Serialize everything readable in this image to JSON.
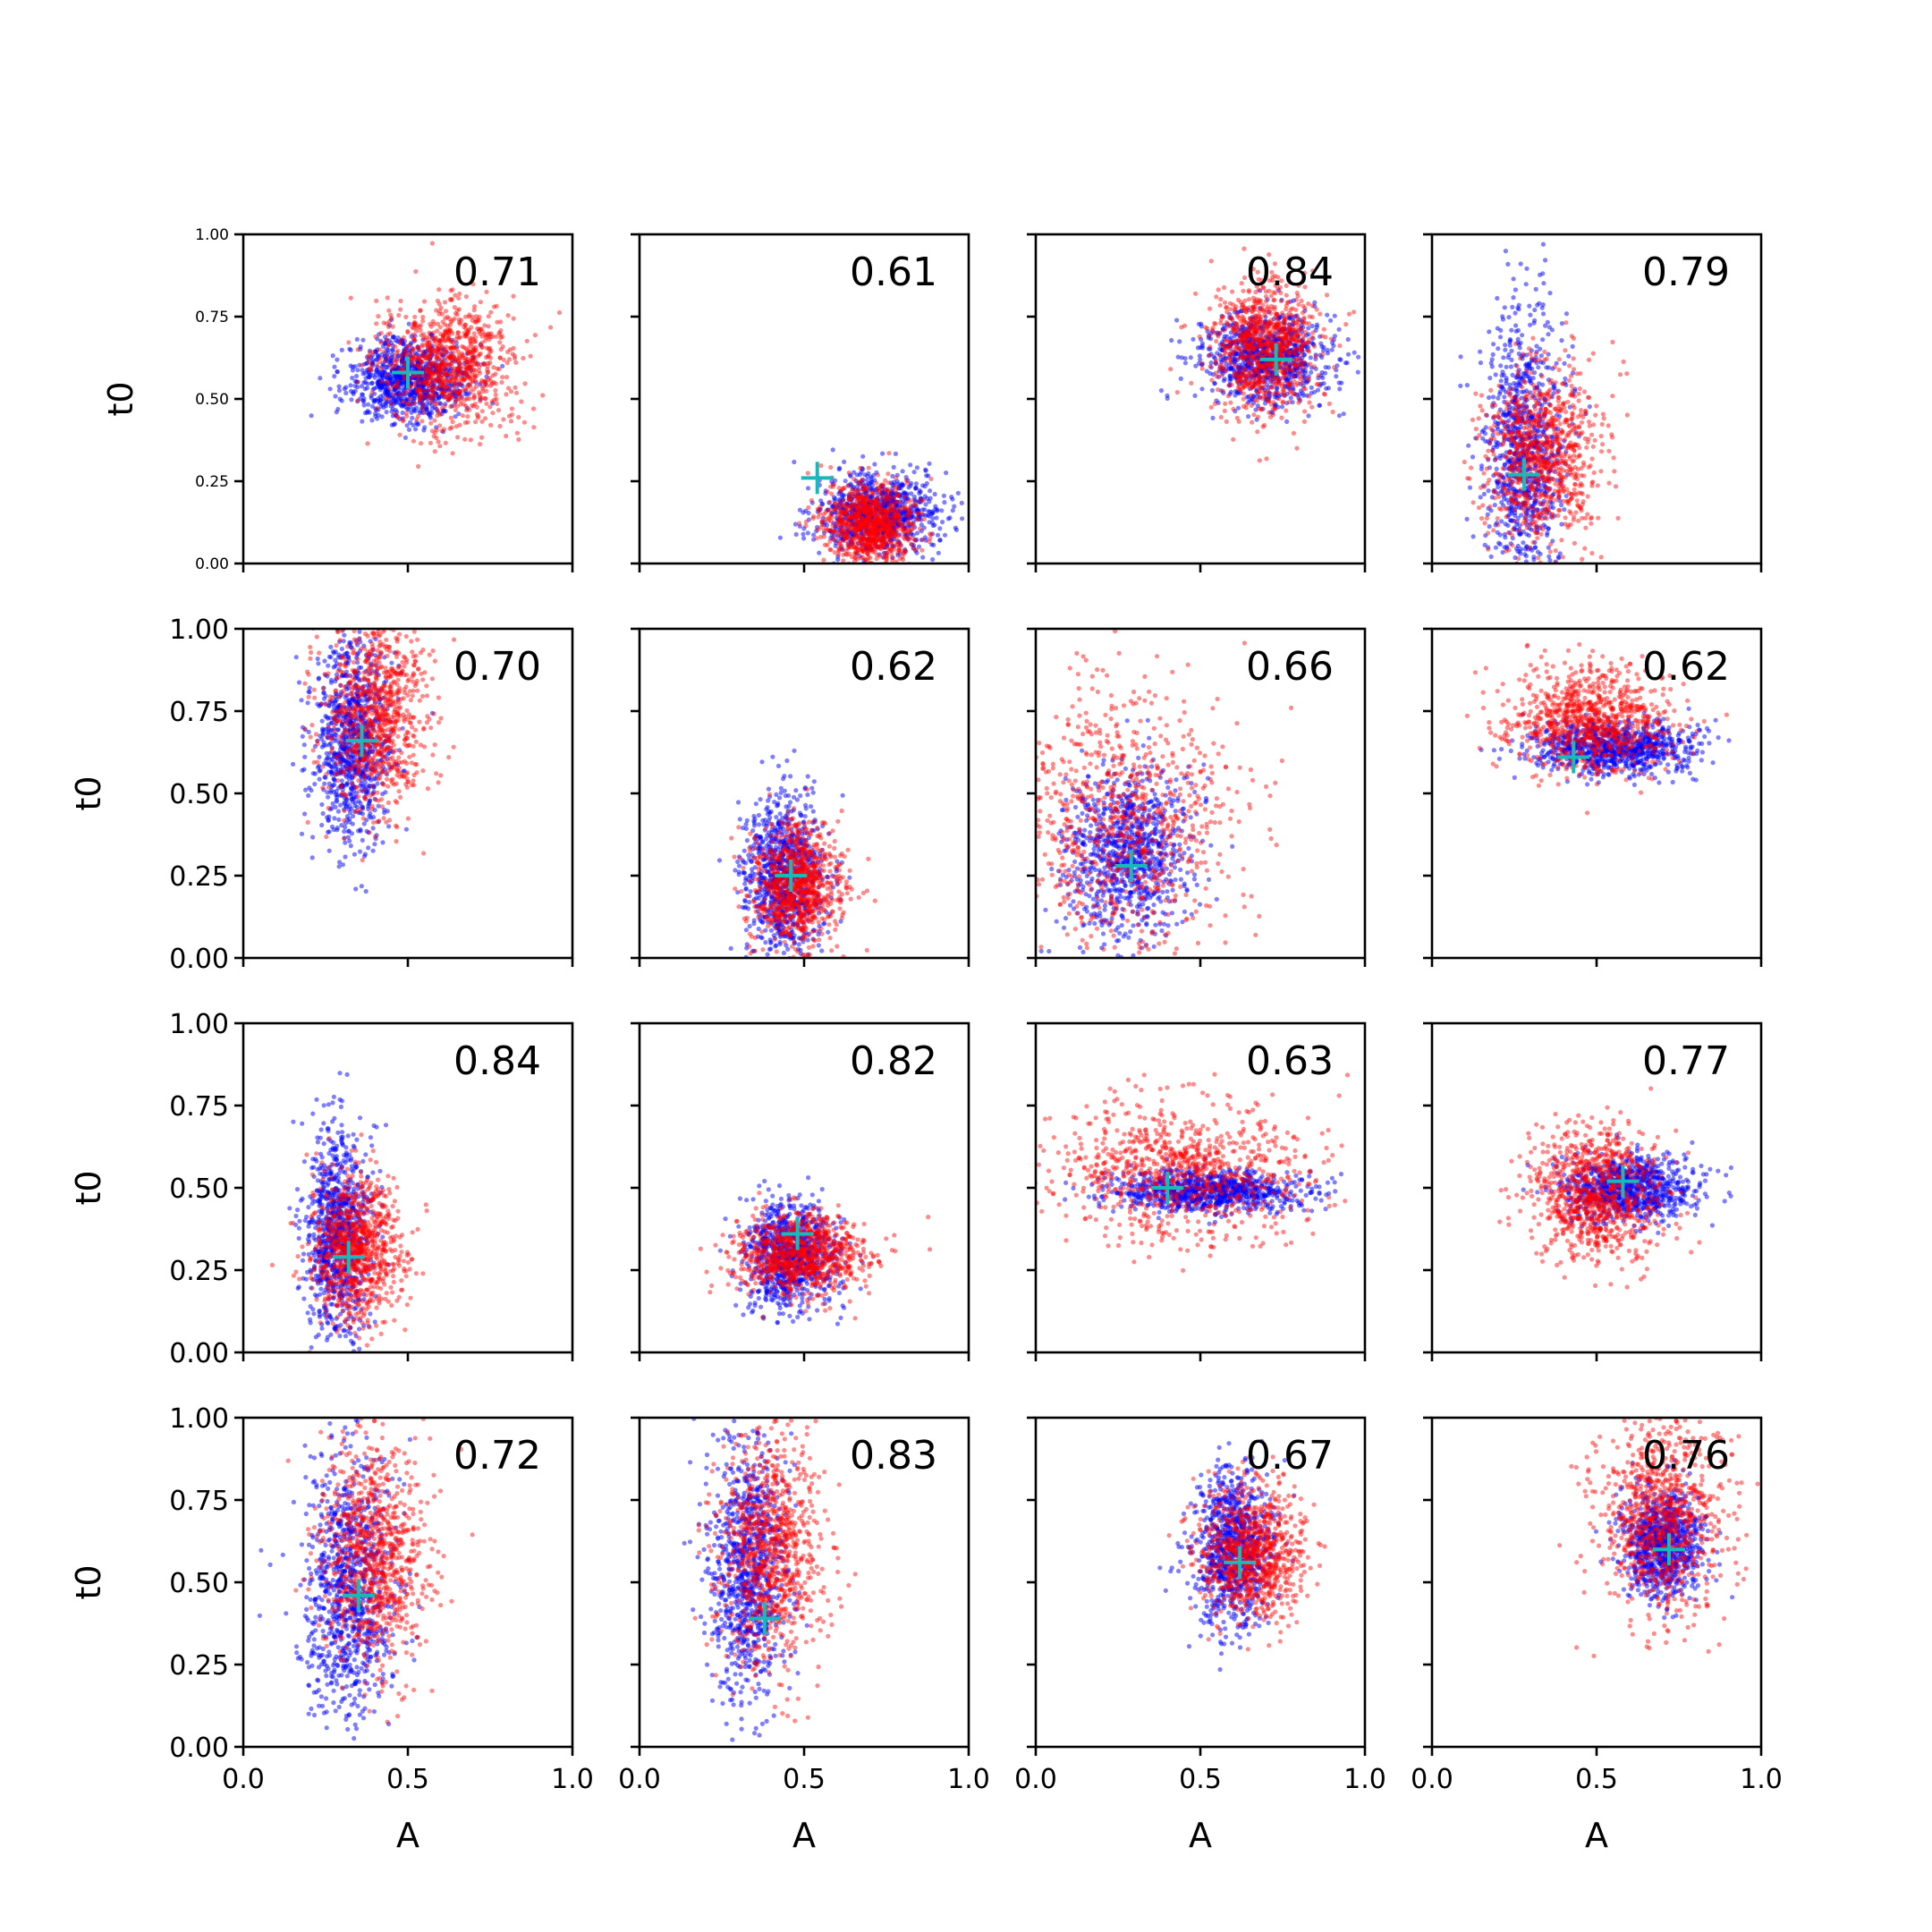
{
  "chart_data": {
    "type": "scatter",
    "layout": "4x4 grid of subplots",
    "xlabel": "A",
    "ylabel": "t0",
    "xlim": [
      0.0,
      1.0
    ],
    "ylim": [
      0.0,
      1.0
    ],
    "xticks": [
      "0.0",
      "0.5",
      "1.0"
    ],
    "yticks": [
      "0.00",
      "0.25",
      "0.50",
      "0.75",
      "1.00"
    ],
    "grid": false,
    "legend": "none",
    "colors": {
      "series_a": "#0000ff",
      "series_b": "#ff0000",
      "marker": "#1ab9b9"
    },
    "panels": [
      {
        "score": "0.71",
        "marker": [
          0.5,
          0.58
        ],
        "blue": {
          "cx": 0.5,
          "cy": 0.56,
          "sx": 0.09,
          "sy": 0.06
        },
        "red": {
          "cx": 0.62,
          "cy": 0.6,
          "sx": 0.1,
          "sy": 0.1
        }
      },
      {
        "score": "0.61",
        "marker": [
          0.54,
          0.26
        ],
        "blue": {
          "cx": 0.72,
          "cy": 0.15,
          "sx": 0.09,
          "sy": 0.06
        },
        "red": {
          "cx": 0.7,
          "cy": 0.12,
          "sx": 0.07,
          "sy": 0.06
        }
      },
      {
        "score": "0.84",
        "marker": [
          0.73,
          0.62
        ],
        "blue": {
          "cx": 0.7,
          "cy": 0.62,
          "sx": 0.1,
          "sy": 0.07
        },
        "red": {
          "cx": 0.7,
          "cy": 0.66,
          "sx": 0.08,
          "sy": 0.1
        }
      },
      {
        "score": "0.79",
        "marker": [
          0.28,
          0.27
        ],
        "blue": {
          "cx": 0.28,
          "cy": 0.35,
          "sx": 0.06,
          "sy": 0.22
        },
        "red": {
          "cx": 0.34,
          "cy": 0.33,
          "sx": 0.09,
          "sy": 0.14
        }
      },
      {
        "score": "0.70",
        "marker": [
          0.36,
          0.66
        ],
        "blue": {
          "cx": 0.33,
          "cy": 0.65,
          "sx": 0.06,
          "sy": 0.15
        },
        "red": {
          "cx": 0.4,
          "cy": 0.75,
          "sx": 0.08,
          "sy": 0.15
        }
      },
      {
        "score": "0.62",
        "marker": [
          0.46,
          0.25
        ],
        "blue": {
          "cx": 0.44,
          "cy": 0.25,
          "sx": 0.06,
          "sy": 0.12
        },
        "red": {
          "cx": 0.48,
          "cy": 0.22,
          "sx": 0.07,
          "sy": 0.09
        }
      },
      {
        "score": "0.66",
        "marker": [
          0.29,
          0.28
        ],
        "blue": {
          "cx": 0.27,
          "cy": 0.32,
          "sx": 0.1,
          "sy": 0.13
        },
        "red": {
          "cx": 0.25,
          "cy": 0.4,
          "sx": 0.18,
          "sy": 0.22
        }
      },
      {
        "score": "0.62",
        "marker": [
          0.43,
          0.61
        ],
        "blue": {
          "cx": 0.55,
          "cy": 0.64,
          "sx": 0.12,
          "sy": 0.04
        },
        "red": {
          "cx": 0.48,
          "cy": 0.72,
          "sx": 0.12,
          "sy": 0.08
        }
      },
      {
        "score": "0.84",
        "marker": [
          0.32,
          0.29
        ],
        "blue": {
          "cx": 0.29,
          "cy": 0.36,
          "sx": 0.05,
          "sy": 0.16
        },
        "red": {
          "cx": 0.34,
          "cy": 0.32,
          "sx": 0.07,
          "sy": 0.11
        }
      },
      {
        "score": "0.82",
        "marker": [
          0.48,
          0.36
        ],
        "blue": {
          "cx": 0.46,
          "cy": 0.3,
          "sx": 0.07,
          "sy": 0.08
        },
        "red": {
          "cx": 0.5,
          "cy": 0.3,
          "sx": 0.1,
          "sy": 0.06
        }
      },
      {
        "score": "0.63",
        "marker": [
          0.4,
          0.5
        ],
        "blue": {
          "cx": 0.52,
          "cy": 0.49,
          "sx": 0.14,
          "sy": 0.03
        },
        "red": {
          "cx": 0.45,
          "cy": 0.55,
          "sx": 0.2,
          "sy": 0.1
        }
      },
      {
        "score": "0.77",
        "marker": [
          0.58,
          0.52
        ],
        "blue": {
          "cx": 0.6,
          "cy": 0.5,
          "sx": 0.1,
          "sy": 0.05
        },
        "red": {
          "cx": 0.5,
          "cy": 0.48,
          "sx": 0.1,
          "sy": 0.1
        }
      },
      {
        "score": "0.72",
        "marker": [
          0.35,
          0.46
        ],
        "blue": {
          "cx": 0.32,
          "cy": 0.48,
          "sx": 0.07,
          "sy": 0.2
        },
        "red": {
          "cx": 0.4,
          "cy": 0.58,
          "sx": 0.08,
          "sy": 0.18
        }
      },
      {
        "score": "0.83",
        "marker": [
          0.38,
          0.39
        ],
        "blue": {
          "cx": 0.33,
          "cy": 0.55,
          "sx": 0.06,
          "sy": 0.2
        },
        "red": {
          "cx": 0.4,
          "cy": 0.6,
          "sx": 0.08,
          "sy": 0.18
        }
      },
      {
        "score": "0.67",
        "marker": [
          0.62,
          0.56
        ],
        "blue": {
          "cx": 0.6,
          "cy": 0.6,
          "sx": 0.06,
          "sy": 0.12
        },
        "red": {
          "cx": 0.66,
          "cy": 0.58,
          "sx": 0.08,
          "sy": 0.1
        }
      },
      {
        "score": "0.76",
        "marker": [
          0.72,
          0.6
        ],
        "blue": {
          "cx": 0.7,
          "cy": 0.62,
          "sx": 0.06,
          "sy": 0.08
        },
        "red": {
          "cx": 0.7,
          "cy": 0.7,
          "sx": 0.1,
          "sy": 0.15
        }
      }
    ]
  }
}
